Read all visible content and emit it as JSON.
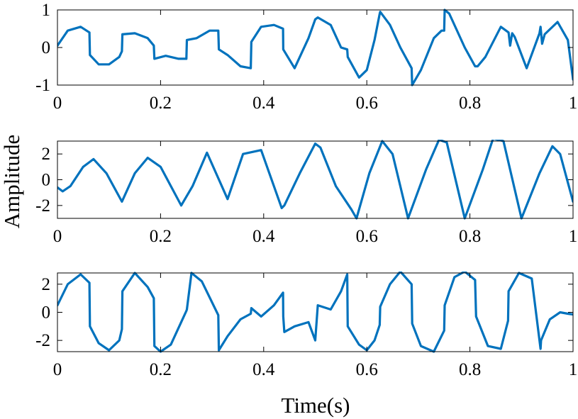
{
  "figure": {
    "ylabel": "Amplitude",
    "xlabel": "Time(s)"
  },
  "chart_data": [
    {
      "type": "line",
      "xlim": [
        0,
        1
      ],
      "ylim": [
        -1,
        1
      ],
      "xticks": [
        "0",
        "0.2",
        "0.4",
        "0.6",
        "0.8",
        "1"
      ],
      "yticks": [
        "-1",
        "0",
        "1"
      ],
      "grid": false,
      "color": "#0072BD",
      "x": [
        0,
        0.02,
        0.045,
        0.062,
        0.063,
        0.08,
        0.1,
        0.12,
        0.125,
        0.126,
        0.15,
        0.175,
        0.187,
        0.188,
        0.21,
        0.235,
        0.25,
        0.251,
        0.27,
        0.295,
        0.312,
        0.313,
        0.33,
        0.355,
        0.375,
        0.376,
        0.395,
        0.42,
        0.4375,
        0.438,
        0.46,
        0.487,
        0.5,
        0.505,
        0.53,
        0.55,
        0.562,
        0.563,
        0.585,
        0.6,
        0.615,
        0.625,
        0.626,
        0.645,
        0.665,
        0.687,
        0.688,
        0.705,
        0.73,
        0.745,
        0.75,
        0.751,
        0.76,
        0.79,
        0.81,
        0.815,
        0.83,
        0.86,
        0.875,
        0.878,
        0.882,
        0.887,
        0.91,
        0.935,
        0.937,
        0.94,
        0.945,
        0.97,
        0.99,
        1.0
      ],
      "y": [
        0.05,
        0.45,
        0.55,
        0.4,
        -0.2,
        -0.45,
        -0.45,
        -0.25,
        -0.1,
        0.35,
        0.38,
        0.25,
        0.05,
        -0.3,
        -0.22,
        -0.3,
        -0.3,
        0.2,
        0.25,
        0.45,
        0.45,
        -0.05,
        -0.2,
        -0.5,
        -0.55,
        0.15,
        0.55,
        0.6,
        0.5,
        -0.05,
        -0.55,
        0.25,
        0.75,
        0.8,
        0.6,
        0.0,
        -0.05,
        -0.25,
        -0.8,
        -0.6,
        0.2,
        0.9,
        0.95,
        0.6,
        0.0,
        -0.55,
        -1.0,
        -0.6,
        0.25,
        0.45,
        0.45,
        1.0,
        0.9,
        0.0,
        -0.5,
        -0.5,
        -0.25,
        0.55,
        0.4,
        0.05,
        0.38,
        0.28,
        -0.55,
        0.38,
        0.55,
        0.1,
        0.35,
        0.68,
        0.2,
        -0.85
      ]
    },
    {
      "type": "line",
      "xlim": [
        0,
        1
      ],
      "ylim": [
        -3,
        3
      ],
      "xticks": [
        "0",
        "0.2",
        "0.4",
        "0.6",
        "0.8",
        "1"
      ],
      "yticks": [
        "-2",
        "0",
        "2"
      ],
      "grid": false,
      "color": "#0072BD",
      "x": [
        0,
        0.01,
        0.025,
        0.05,
        0.07,
        0.095,
        0.125,
        0.15,
        0.175,
        0.2,
        0.24,
        0.262,
        0.29,
        0.33,
        0.36,
        0.395,
        0.435,
        0.44,
        0.47,
        0.5,
        0.51,
        0.54,
        0.57,
        0.58,
        0.605,
        0.63,
        0.65,
        0.68,
        0.715,
        0.74,
        0.755,
        0.79,
        0.825,
        0.845,
        0.865,
        0.9,
        0.935,
        0.96,
        0.975,
        1.0
      ],
      "y": [
        -0.6,
        -0.9,
        -0.5,
        1.0,
        1.6,
        0.5,
        -1.7,
        0.5,
        1.7,
        1.0,
        -2.0,
        -0.5,
        2.1,
        -1.5,
        2.0,
        2.3,
        -2.2,
        -2.0,
        0.5,
        2.8,
        2.5,
        -0.5,
        -2.3,
        -3.0,
        0.5,
        3.0,
        2.0,
        -3.0,
        0.8,
        3.1,
        2.9,
        -3.0,
        0.8,
        3.2,
        3.0,
        -3.0,
        0.5,
        2.6,
        2.0,
        -1.7
      ]
    },
    {
      "type": "line",
      "xlim": [
        0,
        1
      ],
      "ylim": [
        -2.8,
        2.8
      ],
      "xticks": [
        "0",
        "0.2",
        "0.4",
        "0.6",
        "0.8",
        "1"
      ],
      "yticks": [
        "2",
        "0",
        "-2"
      ],
      "grid": false,
      "color": "#0072BD",
      "x": [
        0,
        0.02,
        0.045,
        0.062,
        0.063,
        0.08,
        0.1,
        0.12,
        0.125,
        0.126,
        0.15,
        0.175,
        0.187,
        0.188,
        0.2,
        0.22,
        0.25,
        0.251,
        0.26,
        0.28,
        0.312,
        0.313,
        0.33,
        0.355,
        0.375,
        0.376,
        0.395,
        0.42,
        0.4375,
        0.438,
        0.44,
        0.46,
        0.487,
        0.5,
        0.505,
        0.53,
        0.55,
        0.562,
        0.563,
        0.585,
        0.6,
        0.615,
        0.625,
        0.626,
        0.645,
        0.665,
        0.687,
        0.688,
        0.705,
        0.73,
        0.75,
        0.751,
        0.77,
        0.79,
        0.81,
        0.812,
        0.835,
        0.86,
        0.874,
        0.875,
        0.895,
        0.92,
        0.937,
        0.938,
        0.955,
        0.975,
        0.99,
        1.0
      ],
      "y": [
        0.5,
        2.0,
        2.7,
        2.1,
        -1.0,
        -2.2,
        -2.7,
        -2.0,
        -1.2,
        1.5,
        2.8,
        1.8,
        1.0,
        -2.4,
        -2.8,
        -2.3,
        0.1,
        0.2,
        2.8,
        2.2,
        -0.2,
        -2.7,
        -1.7,
        -0.5,
        -0.1,
        0.3,
        -0.3,
        0.5,
        1.4,
        -0.3,
        -1.4,
        -1.0,
        -0.7,
        -2.0,
        0.5,
        0.2,
        1.5,
        2.7,
        -1.0,
        -2.3,
        -2.7,
        -2.0,
        -0.9,
        0.4,
        2.0,
        2.9,
        2.0,
        -0.8,
        -2.4,
        -2.8,
        -1.3,
        0.5,
        2.5,
        2.9,
        2.3,
        -0.3,
        -2.4,
        -2.6,
        -0.6,
        1.5,
        2.8,
        2.4,
        -2.6,
        -2.0,
        -0.5,
        0.0,
        -0.1,
        -0.15
      ]
    }
  ]
}
